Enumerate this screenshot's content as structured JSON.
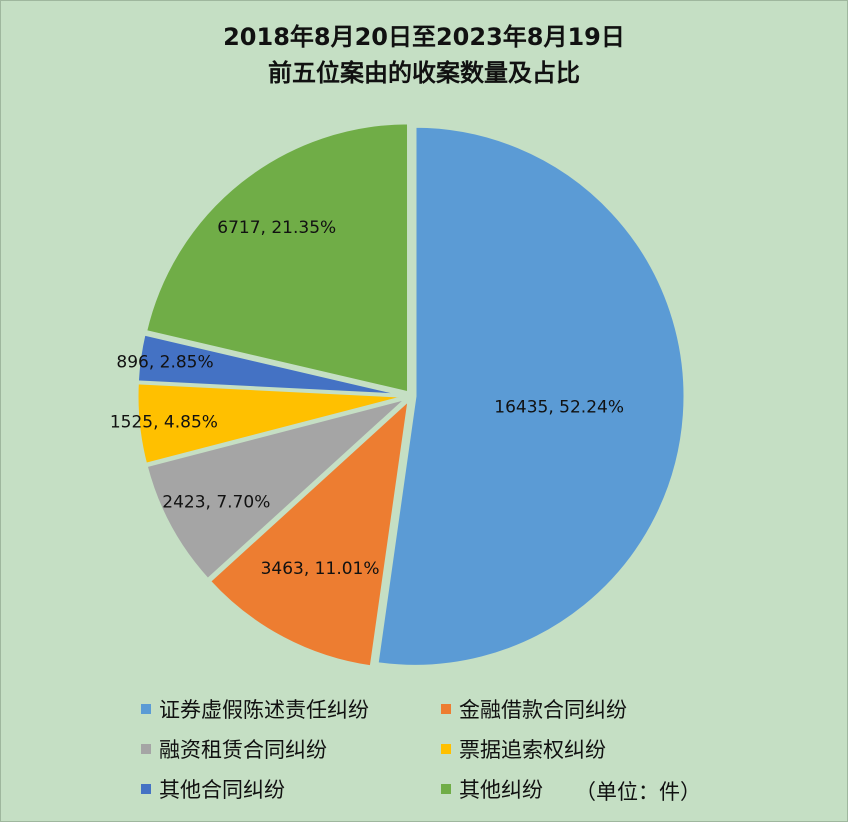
{
  "chart_data": {
    "type": "pie",
    "title_line1": "2018年8月20日至2023年8月19日",
    "title_line2": "前五位案由的收案数量及占比",
    "unit_note": "（单位：件）",
    "slices": [
      {
        "name": "证券虚假陈述责任纠纷",
        "value": 16435,
        "label": "16435, 52.24%",
        "color": "#5b9bd5"
      },
      {
        "name": "金融借款合同纠纷",
        "value": 3463,
        "label": "3463, 11.01%",
        "color": "#ed7d31"
      },
      {
        "name": "融资租赁合同纠纷",
        "value": 2423,
        "label": "2423, 7.70%",
        "color": "#a5a5a5"
      },
      {
        "name": "票据追索权纠纷",
        "value": 1525,
        "label": "1525, 4.85%",
        "color": "#ffc000"
      },
      {
        "name": "其他合同纠纷",
        "value": 896,
        "label": "896, 2.85%",
        "color": "#4472c4"
      },
      {
        "name": "其他纠纷",
        "value": 6717,
        "label": "6717, 21.35%",
        "color": "#70ad47"
      }
    ],
    "legend_position": "bottom"
  }
}
